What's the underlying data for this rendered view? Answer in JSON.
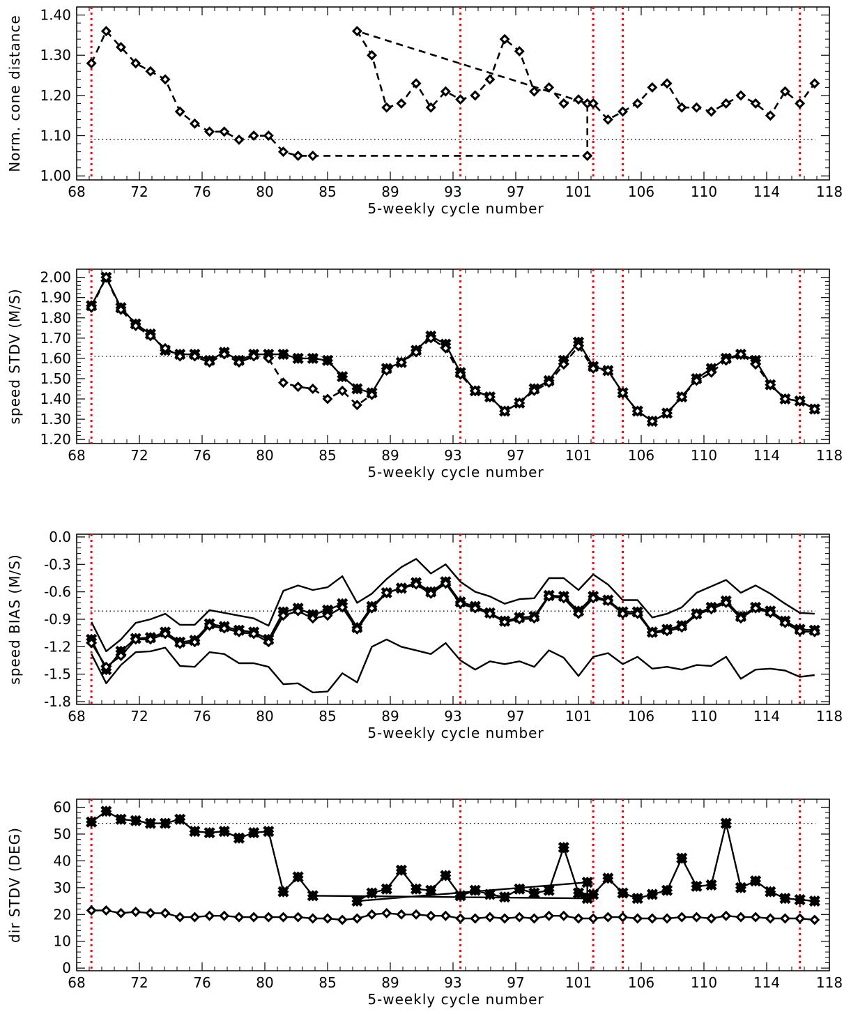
{
  "chart_data": [
    {
      "type": "line",
      "xlabel": "5-weekly cycle number",
      "ylabel": "Norm. cone distance",
      "x_ticks": [
        "68",
        "72",
        "76",
        "80",
        "85",
        "89",
        "93",
        "97",
        "101",
        "106",
        "110",
        "114",
        "118"
      ],
      "yticks": [
        1.0,
        1.1,
        1.2,
        1.3,
        1.4
      ],
      "ytick_labels": [
        "1.00",
        "1.10",
        "1.20",
        "1.30",
        "1.40"
      ],
      "ylim": [
        0.99,
        1.42
      ],
      "reference_line": 1.09,
      "vertical_markers": [
        1,
        26,
        35,
        37,
        49
      ],
      "series": [
        {
          "style": "dashed-open-diamond",
          "y": [
            1.28,
            1.36,
            1.32,
            1.28,
            1.26,
            1.24,
            1.16,
            1.13,
            1.11,
            1.11,
            1.09,
            1.1,
            1.1,
            1.06,
            1.05,
            1.05,
            1.05,
            1.18,
            1.36,
            1.3,
            1.17,
            1.18,
            1.23,
            1.17,
            1.21,
            1.19,
            1.2,
            1.24,
            1.34,
            1.31,
            1.21,
            1.22,
            1.18,
            1.19,
            1.18,
            1.14,
            1.16,
            1.18,
            1.22,
            1.23,
            1.17,
            1.17,
            1.16,
            1.18,
            1.2,
            1.18,
            1.15,
            1.21,
            1.18,
            1.23
          ],
          "x_override": {
            "16": 34.6,
            "17": 34.6
          }
        }
      ]
    },
    {
      "type": "line",
      "xlabel": "5-weekly cycle number",
      "ylabel": "speed STDV (M/S)",
      "x_ticks": [
        "68",
        "72",
        "76",
        "80",
        "85",
        "89",
        "93",
        "97",
        "101",
        "106",
        "110",
        "114",
        "118"
      ],
      "yticks": [
        1.2,
        1.3,
        1.4,
        1.5,
        1.6,
        1.7,
        1.8,
        1.9,
        2.0
      ],
      "ytick_labels": [
        "1.20",
        "1.30",
        "1.40",
        "1.50",
        "1.60",
        "1.70",
        "1.80",
        "1.90",
        "2.00"
      ],
      "ylim": [
        1.18,
        2.04
      ],
      "reference_line": 1.61,
      "vertical_markers": [
        1,
        26,
        35,
        37,
        49
      ],
      "series": [
        {
          "style": "solid-filled-cross",
          "y": [
            1.86,
            2.0,
            1.85,
            1.77,
            1.72,
            1.64,
            1.62,
            1.62,
            1.59,
            1.63,
            1.59,
            1.62,
            1.62,
            1.62,
            1.6,
            1.6,
            1.59,
            1.51,
            1.45,
            1.43,
            1.55,
            1.58,
            1.64,
            1.71,
            1.67,
            1.53,
            1.44,
            1.41,
            1.34,
            1.38,
            1.45,
            1.49,
            1.59,
            1.68,
            1.56,
            1.54,
            1.43,
            1.34,
            1.29,
            1.33,
            1.41,
            1.5,
            1.55,
            1.6,
            1.62,
            1.59,
            1.47,
            1.4,
            1.39,
            1.35
          ]
        },
        {
          "style": "dashed-open-diamond",
          "y": [
            1.85,
            2.0,
            1.84,
            1.76,
            1.71,
            1.65,
            1.61,
            1.61,
            1.58,
            1.62,
            1.58,
            1.61,
            1.6,
            1.48,
            1.46,
            1.45,
            1.4,
            1.44,
            1.37,
            1.42,
            1.54,
            1.58,
            1.63,
            1.7,
            1.65,
            1.52,
            1.44,
            1.41,
            1.34,
            1.38,
            1.44,
            1.48,
            1.57,
            1.66,
            1.55,
            1.54,
            1.43,
            1.34,
            1.29,
            1.33,
            1.41,
            1.49,
            1.53,
            1.59,
            1.62,
            1.57,
            1.47,
            1.4,
            1.39,
            1.35
          ],
          "segments": [
            [
              0,
              12
            ],
            [
              12,
              20
            ],
            [
              20,
              50
            ]
          ]
        }
      ]
    },
    {
      "type": "line",
      "xlabel": "5-weekly cycle number",
      "ylabel": "speed BIAS (M/S)",
      "x_ticks": [
        "68",
        "72",
        "76",
        "80",
        "85",
        "89",
        "93",
        "97",
        "101",
        "106",
        "110",
        "114",
        "118"
      ],
      "yticks": [
        0.0,
        -0.3,
        -0.6,
        -0.9,
        -1.2,
        -1.5,
        -1.8
      ],
      "ytick_labels": [
        "0.0",
        "-0.3",
        "-0.6",
        "-0.9",
        "-1.2",
        "-1.5",
        "-1.8"
      ],
      "ylim": [
        -1.83,
        0.03
      ],
      "reference_line": -0.81,
      "vertical_markers": [
        1,
        26,
        35,
        37,
        49
      ],
      "series": [
        {
          "style": "solid-filled-cross",
          "y": [
            -1.12,
            -1.45,
            -1.25,
            -1.11,
            -1.1,
            -1.04,
            -1.15,
            -1.13,
            -0.95,
            -0.98,
            -1.02,
            -1.04,
            -1.12,
            -0.82,
            -0.78,
            -0.85,
            -0.8,
            -0.73,
            -0.99,
            -0.76,
            -0.61,
            -0.56,
            -0.5,
            -0.6,
            -0.49,
            -0.71,
            -0.76,
            -0.83,
            -0.92,
            -0.88,
            -0.87,
            -0.64,
            -0.65,
            -0.81,
            -0.65,
            -0.69,
            -0.82,
            -0.82,
            -1.04,
            -1.01,
            -0.97,
            -0.84,
            -0.77,
            -0.7,
            -0.87,
            -0.77,
            -0.81,
            -0.92,
            -1.01,
            -1.02
          ]
        },
        {
          "style": "solid-open-diamond",
          "y": [
            -1.16,
            -1.42,
            -1.3,
            -1.12,
            -1.12,
            -1.06,
            -1.17,
            -1.15,
            -0.97,
            -1.0,
            -1.04,
            -1.06,
            -1.15,
            -0.86,
            -0.81,
            -0.89,
            -0.86,
            -0.77,
            -1.01,
            -0.78,
            -0.61,
            -0.56,
            -0.52,
            -0.62,
            -0.51,
            -0.73,
            -0.78,
            -0.84,
            -0.93,
            -0.9,
            -0.89,
            -0.65,
            -0.67,
            -0.84,
            -0.67,
            -0.7,
            -0.84,
            -0.84,
            -1.05,
            -1.03,
            -0.99,
            -0.85,
            -0.79,
            -0.72,
            -0.89,
            -0.78,
            -0.83,
            -0.94,
            -1.03,
            -1.04
          ]
        },
        {
          "style": "solid-line",
          "y": [
            -0.93,
            -1.25,
            -1.12,
            -0.94,
            -0.9,
            -0.84,
            -0.96,
            -0.96,
            -0.8,
            -0.83,
            -0.86,
            -0.89,
            -0.97,
            -0.59,
            -0.53,
            -0.58,
            -0.55,
            -0.43,
            -0.72,
            -0.62,
            -0.46,
            -0.33,
            -0.24,
            -0.4,
            -0.3,
            -0.49,
            -0.6,
            -0.65,
            -0.73,
            -0.68,
            -0.67,
            -0.45,
            -0.45,
            -0.58,
            -0.41,
            -0.52,
            -0.69,
            -0.69,
            -0.88,
            -0.84,
            -0.77,
            -0.61,
            -0.54,
            -0.47,
            -0.61,
            -0.53,
            -0.62,
            -0.73,
            -0.83,
            -0.84
          ]
        },
        {
          "style": "solid-line",
          "y": [
            -1.28,
            -1.6,
            -1.4,
            -1.26,
            -1.25,
            -1.21,
            -1.41,
            -1.42,
            -1.26,
            -1.28,
            -1.38,
            -1.38,
            -1.42,
            -1.61,
            -1.6,
            -1.7,
            -1.69,
            -1.49,
            -1.59,
            -1.2,
            -1.12,
            -1.2,
            -1.24,
            -1.28,
            -1.16,
            -1.35,
            -1.45,
            -1.36,
            -1.39,
            -1.36,
            -1.42,
            -1.24,
            -1.32,
            -1.52,
            -1.31,
            -1.27,
            -1.39,
            -1.31,
            -1.44,
            -1.42,
            -1.45,
            -1.4,
            -1.41,
            -1.31,
            -1.55,
            -1.45,
            -1.44,
            -1.46,
            -1.53,
            -1.51
          ]
        }
      ]
    },
    {
      "type": "line",
      "xlabel": "5-weekly cycle number",
      "ylabel": "dir STDV (DEG)",
      "x_ticks": [
        "68",
        "72",
        "76",
        "80",
        "85",
        "89",
        "93",
        "97",
        "101",
        "106",
        "110",
        "114",
        "118"
      ],
      "yticks": [
        0,
        10,
        20,
        30,
        40,
        50,
        60
      ],
      "ytick_labels": [
        "0",
        "10",
        "20",
        "30",
        "40",
        "50",
        "60"
      ],
      "ylim": [
        -1,
        63
      ],
      "reference_line": 54,
      "vertical_markers": [
        1,
        26,
        35,
        37,
        49
      ],
      "series": [
        {
          "style": "solid-filled-cross",
          "y": [
            54.5,
            58.5,
            55.5,
            55.0,
            54.0,
            54.0,
            55.5,
            51.0,
            50.5,
            51.0,
            48.5,
            50.5,
            51.0,
            28.5,
            34.0,
            27.0,
            26.0,
            32.0,
            25.0,
            28.0,
            29.5,
            36.5,
            29.5,
            29.0,
            34.5,
            27.0,
            29.0,
            27.5,
            26.5,
            29.5,
            28.0,
            29.0,
            45.0,
            28.0,
            27.5,
            33.5,
            28.0,
            26.0,
            27.5,
            29.0,
            41.0,
            30.5,
            31.0,
            54.0,
            30.0,
            32.5,
            28.5,
            26.0,
            25.5,
            25.0
          ],
          "x_override": {
            "16": 34.6,
            "17": 34.6
          }
        },
        {
          "style": "solid-open-diamond",
          "y": [
            21.5,
            21.5,
            20.5,
            21.0,
            20.5,
            20.5,
            19.0,
            19.0,
            19.5,
            19.5,
            19.0,
            19.0,
            19.0,
            19.0,
            19.0,
            18.5,
            18.5,
            18.0,
            18.5,
            20.0,
            20.5,
            20.0,
            20.0,
            19.5,
            19.5,
            18.5,
            18.5,
            19.0,
            18.5,
            19.0,
            18.5,
            19.5,
            19.5,
            18.5,
            18.5,
            19.0,
            19.0,
            18.5,
            18.5,
            18.5,
            19.0,
            19.0,
            18.5,
            19.5,
            19.0,
            19.0,
            18.5,
            18.5,
            18.5,
            18.0
          ]
        }
      ]
    }
  ]
}
